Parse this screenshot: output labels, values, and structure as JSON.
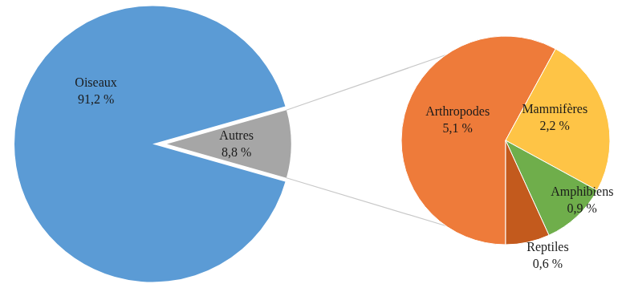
{
  "chart_data": [
    {
      "type": "pie",
      "categories": [
        "Oiseaux",
        "Autres"
      ],
      "values": [
        91.2,
        8.8
      ],
      "value_labels": [
        "91,2 %",
        "8,8 %"
      ],
      "colors": [
        "#5b9bd5",
        "#a6a6a6"
      ],
      "data_labels": true
    },
    {
      "type": "pie",
      "categories": [
        "Arthropodes",
        "Mammifères",
        "Amphibiens",
        "Reptiles"
      ],
      "values": [
        5.1,
        2.2,
        0.9,
        0.6
      ],
      "value_labels": [
        "5,1 %",
        "2,2 %",
        "0,9 %",
        "0,6 %"
      ],
      "colors": [
        "#ee7b3a",
        "#fec446",
        "#6fae4b",
        "#c35a1d"
      ],
      "data_labels": true
    }
  ]
}
